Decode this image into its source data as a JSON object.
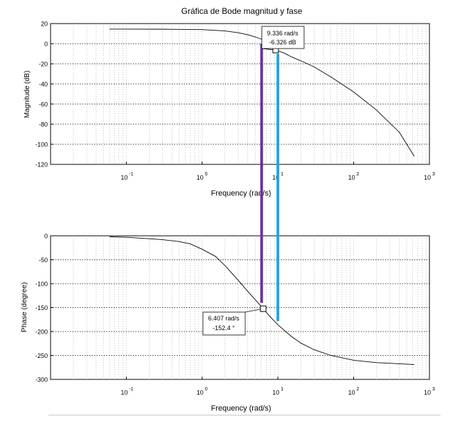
{
  "chart_data": [
    {
      "type": "line",
      "title": "Gráfica de Bode magnitud y fase",
      "xlabel": "Frequency (rad/s)",
      "ylabel": "Magnitude (dB)",
      "xscale": "log",
      "xlim": [
        0.01,
        1000
      ],
      "ylim": [
        -120,
        20
      ],
      "grid": true,
      "x_tick_labels": [
        {
          "base": "10",
          "exp": "-1",
          "value": 0.1
        },
        {
          "base": "10",
          "exp": "0",
          "value": 1
        },
        {
          "base": "10",
          "exp": "1",
          "value": 10
        },
        {
          "base": "10",
          "exp": "2",
          "value": 100
        },
        {
          "base": "10",
          "exp": "3",
          "value": 1000
        }
      ],
      "y_ticks": [
        20,
        0,
        -20,
        -40,
        -60,
        -80,
        -100,
        -120
      ],
      "series": [
        {
          "name": "magnitude",
          "color": "#000000",
          "x": [
            0.06,
            0.1,
            0.3,
            1,
            2,
            3,
            4,
            5,
            6.407,
            8,
            9.336,
            12,
            15,
            20,
            30,
            50,
            100,
            200,
            400,
            630
          ],
          "y": [
            14.5,
            14.5,
            14.4,
            14.0,
            12.7,
            10.9,
            8.9,
            6.8,
            3.8,
            0.3,
            -6.3,
            -9.2,
            -13.0,
            -17.0,
            -23.0,
            -33.0,
            -48.0,
            -66.0,
            -88.0,
            -112.0
          ]
        }
      ],
      "datatip": {
        "x": 9.336,
        "y": -6.326,
        "line1": "9.336 rad/s",
        "line2": "-6.326 dB"
      }
    },
    {
      "type": "line",
      "xlabel": "Frequency (rad/s)",
      "ylabel": "Phase (degree)",
      "xscale": "log",
      "xlim": [
        0.01,
        1000
      ],
      "ylim": [
        -300,
        0
      ],
      "grid": true,
      "x_tick_labels": [
        {
          "base": "10",
          "exp": "-1",
          "value": 0.1
        },
        {
          "base": "10",
          "exp": "0",
          "value": 1
        },
        {
          "base": "10",
          "exp": "1",
          "value": 10
        },
        {
          "base": "10",
          "exp": "2",
          "value": 100
        },
        {
          "base": "10",
          "exp": "3",
          "value": 1000
        }
      ],
      "y_ticks": [
        0,
        -50,
        -100,
        -150,
        -200,
        -250,
        -300
      ],
      "series": [
        {
          "name": "phase",
          "color": "#000000",
          "x": [
            0.06,
            0.1,
            0.2,
            0.3,
            0.5,
            0.7,
            1,
            1.5,
            2,
            3,
            4,
            5,
            6.407,
            8,
            10,
            15,
            20,
            30,
            50,
            100,
            200,
            630
          ],
          "y": [
            -2,
            -3,
            -6,
            -8,
            -12,
            -17,
            -28,
            -43,
            -62,
            -93,
            -116,
            -133,
            -152.4,
            -170,
            -186,
            -210,
            -224,
            -238,
            -250,
            -260,
            -265,
            -269
          ]
        }
      ],
      "datatip": {
        "x": 6.407,
        "y": -152.4,
        "line1": "6.407 rad/s",
        "line2": "-152.4 °"
      }
    }
  ],
  "markers": [
    {
      "name": "purple-marker",
      "color": "#7030a0",
      "freq": 6.1,
      "from_mag_db": 0,
      "to_phase_deg": -140
    },
    {
      "name": "cyan-marker",
      "color": "#1aa7dc",
      "freq": 10.0,
      "from_mag_db": -10,
      "to_phase_deg": -178
    }
  ]
}
